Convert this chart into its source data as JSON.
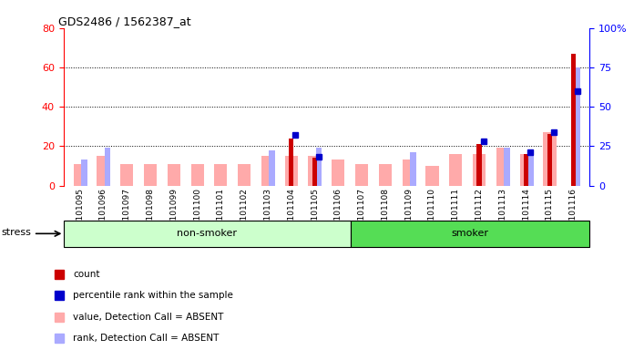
{
  "title": "GDS2486 / 1562387_at",
  "samples": [
    "GSM101095",
    "GSM101096",
    "GSM101097",
    "GSM101098",
    "GSM101099",
    "GSM101100",
    "GSM101101",
    "GSM101102",
    "GSM101103",
    "GSM101104",
    "GSM101105",
    "GSM101106",
    "GSM101107",
    "GSM101108",
    "GSM101109",
    "GSM101110",
    "GSM101111",
    "GSM101112",
    "GSM101113",
    "GSM101114",
    "GSM101115",
    "GSM101116"
  ],
  "count_values": [
    0,
    0,
    0,
    0,
    0,
    0,
    0,
    0,
    0,
    24,
    14,
    0,
    0,
    0,
    0,
    0,
    0,
    21,
    0,
    16,
    26,
    67
  ],
  "percentile_values": [
    0,
    0,
    0,
    0,
    0,
    0,
    0,
    0,
    0,
    32,
    18,
    0,
    0,
    0,
    0,
    0,
    0,
    28,
    0,
    21,
    34,
    60
  ],
  "absent_value": [
    11,
    15,
    11,
    11,
    11,
    11,
    11,
    11,
    15,
    15,
    15,
    13,
    11,
    11,
    13,
    10,
    16,
    16,
    19,
    16,
    27,
    0
  ],
  "absent_rank": [
    13,
    19,
    0,
    0,
    0,
    0,
    0,
    0,
    18,
    0,
    19,
    0,
    0,
    0,
    17,
    0,
    0,
    0,
    19,
    18,
    0,
    60
  ],
  "non_smoker_count": 12,
  "smoker_count": 10,
  "total": 22,
  "ylim_left": [
    0,
    80
  ],
  "ylim_right": [
    0,
    100
  ],
  "yticks_left": [
    0,
    20,
    40,
    60,
    80
  ],
  "yticks_right": [
    0,
    25,
    50,
    75,
    100
  ],
  "color_count": "#cc0000",
  "color_percentile": "#0000cc",
  "color_absent_value": "#ffaaaa",
  "color_absent_rank": "#aaaaff",
  "color_non_smoker_bg": "#ccffcc",
  "color_smoker_bg": "#55dd55",
  "color_plot_bg": "#ffffff",
  "stress_label": "stress",
  "non_smoker_label": "non-smoker",
  "smoker_label": "smoker",
  "legend_items": [
    "count",
    "percentile rank within the sample",
    "value, Detection Call = ABSENT",
    "rank, Detection Call = ABSENT"
  ]
}
